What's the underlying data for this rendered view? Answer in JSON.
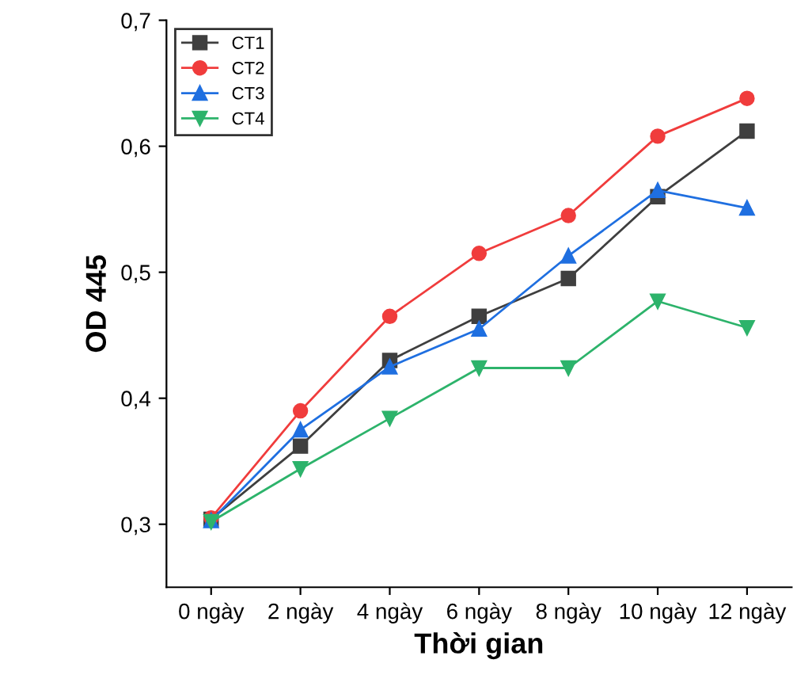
{
  "chart_data": {
    "type": "line",
    "xlabel": "Thời gian",
    "ylabel": "OD 445",
    "categories": [
      "0 ngày",
      "2 ngày",
      "4 ngày",
      "6 ngày",
      "8 ngày",
      "10 ngày",
      "12 ngày"
    ],
    "series": [
      {
        "name": "CT1",
        "color": "#3f3f3f",
        "marker": "square",
        "values": [
          0.304,
          0.362,
          0.43,
          0.465,
          0.495,
          0.56,
          0.612
        ]
      },
      {
        "name": "CT2",
        "color": "#f03c3c",
        "marker": "circle",
        "values": [
          0.305,
          0.39,
          0.465,
          0.515,
          0.545,
          0.608,
          0.638
        ]
      },
      {
        "name": "CT3",
        "color": "#1f6fe0",
        "marker": "triangle",
        "values": [
          0.303,
          0.375,
          0.425,
          0.455,
          0.513,
          0.565,
          0.551
        ]
      },
      {
        "name": "CT4",
        "color": "#2db36b",
        "marker": "triangle_down",
        "values": [
          0.302,
          0.344,
          0.384,
          0.424,
          0.424,
          0.477,
          0.456
        ]
      }
    ],
    "ylim": [
      0.25,
      0.7
    ],
    "yticks": [
      {
        "value": 0.3,
        "label": "0,3"
      },
      {
        "value": 0.4,
        "label": "0,4"
      },
      {
        "value": 0.5,
        "label": "0,5"
      },
      {
        "value": 0.6,
        "label": "0,6"
      },
      {
        "value": 0.7,
        "label": "0,7"
      }
    ],
    "grid": false,
    "legend": "top left",
    "line_style": "solid"
  }
}
